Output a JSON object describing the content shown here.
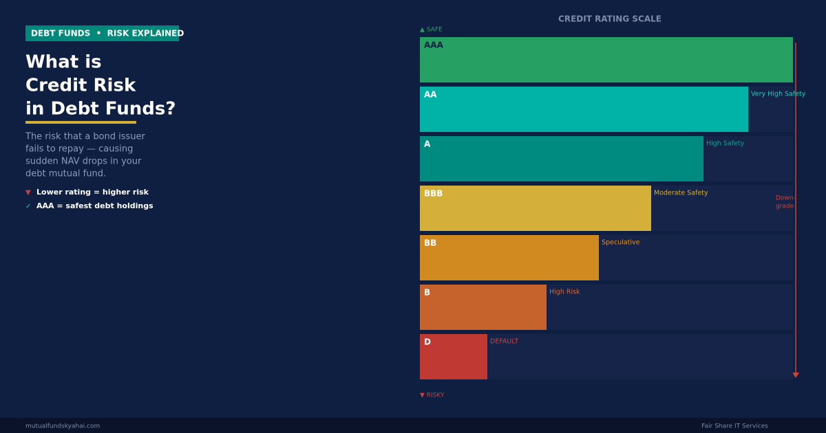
{
  "header": {
    "tag": "DEBT FUNDS  •  RISK EXPLAINED",
    "title_lines": [
      "What is",
      "Credit Risk",
      "in Debt Funds?"
    ],
    "description_lines": [
      "The risk that a bond issuer",
      "fails to repay — causing",
      "sudden NAV drops in your",
      "debt mutual fund."
    ],
    "bullets": [
      {
        "icon": "▼",
        "text": "Lower rating = higher risk"
      },
      {
        "icon": "✓",
        "text": "AAA = safest debt holdings"
      }
    ]
  },
  "scale": {
    "title": "CREDIT RATING SCALE",
    "top_label": "▲ SAFE",
    "bottom_label": "▼ RISKY",
    "arrow_label_lines": [
      "Down-",
      "grade"
    ],
    "ratings": [
      {
        "name": "AAA",
        "label": null,
        "color": "#27a163",
        "label_color": "#27a163",
        "name_color": "#0f1f42"
      },
      {
        "name": "AA",
        "label": "Very High Safety",
        "color": "#00b3a6",
        "label_color": "#26c6b8",
        "name_color": "#ffffff"
      },
      {
        "name": "A",
        "label": "High Safety",
        "color": "#008b80",
        "label_color": "#1a9e8f",
        "name_color": "#ffffff"
      },
      {
        "name": "BBB",
        "label": "Moderate Safety",
        "color": "#d4af3a",
        "label_color": "#d4af3a",
        "name_color": "#ffffff"
      },
      {
        "name": "BB",
        "label": "Speculative",
        "color": "#d08a20",
        "label_color": "#e0922a",
        "name_color": "#ffffff"
      },
      {
        "name": "B",
        "label": "High Risk",
        "color": "#c6622b",
        "label_color": "#d0683a",
        "name_color": "#ffffff"
      },
      {
        "name": "D",
        "label": "DEFAULT",
        "color": "#c03a33",
        "label_color": "#c9443a",
        "name_color": "#ffffff"
      }
    ]
  },
  "footer": {
    "left": "mutualfundskyahai.com",
    "right": "Fair Share IT Services"
  }
}
